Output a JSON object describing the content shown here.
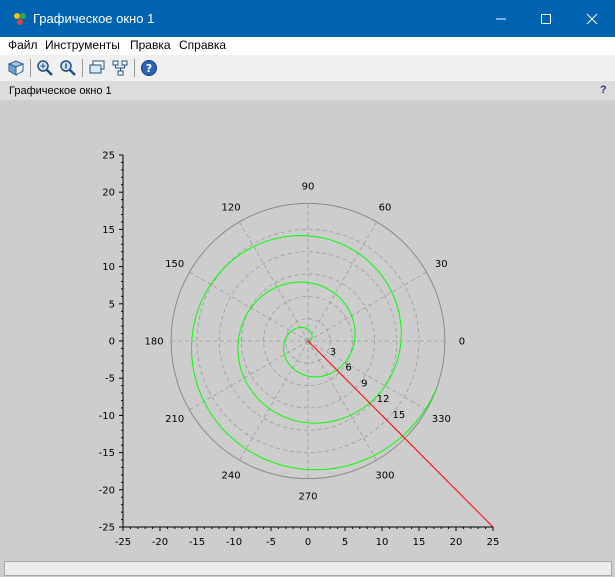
{
  "window": {
    "title": "Графическое окно 1"
  },
  "menu": [
    "Файл",
    "Инструменты",
    "Правка",
    "Справка"
  ],
  "toolbar": {
    "buttons": [
      "rotate-icon",
      "zoom-in-icon",
      "zoom-reset-icon",
      "datatip-icon",
      "tree-icon",
      "help-icon"
    ]
  },
  "infobar": {
    "title": "Графическое окно 1",
    "help": "?"
  },
  "chart_data": {
    "type": "polar-line",
    "x_ticks": [
      "-25",
      "-20",
      "-15",
      "-10",
      "-5",
      "0",
      "5",
      "10",
      "15",
      "20",
      "25"
    ],
    "y_ticks": [
      "25",
      "20",
      "15",
      "10",
      "5",
      "0",
      "-5",
      "-10",
      "-15",
      "-20",
      "-25"
    ],
    "xlim": [
      -25,
      25
    ],
    "ylim": [
      -25,
      25
    ],
    "angle_labels": [
      "0",
      "30",
      "60",
      "90",
      "120",
      "150",
      "180",
      "210",
      "240",
      "270",
      "300",
      "330"
    ],
    "radial_labels": [
      "3",
      "6",
      "9",
      "12",
      "15"
    ],
    "radial_axis_angle_deg": 315,
    "radial_axis_max": 25,
    "outer_radius": 18.5,
    "spiral": {
      "color": "#00ff00",
      "r_coefficient": 1,
      "theta_start_rad": 0,
      "theta_end_rad": 18.5
    },
    "radial_line_color": "#ff0000",
    "grid": "dashed"
  }
}
